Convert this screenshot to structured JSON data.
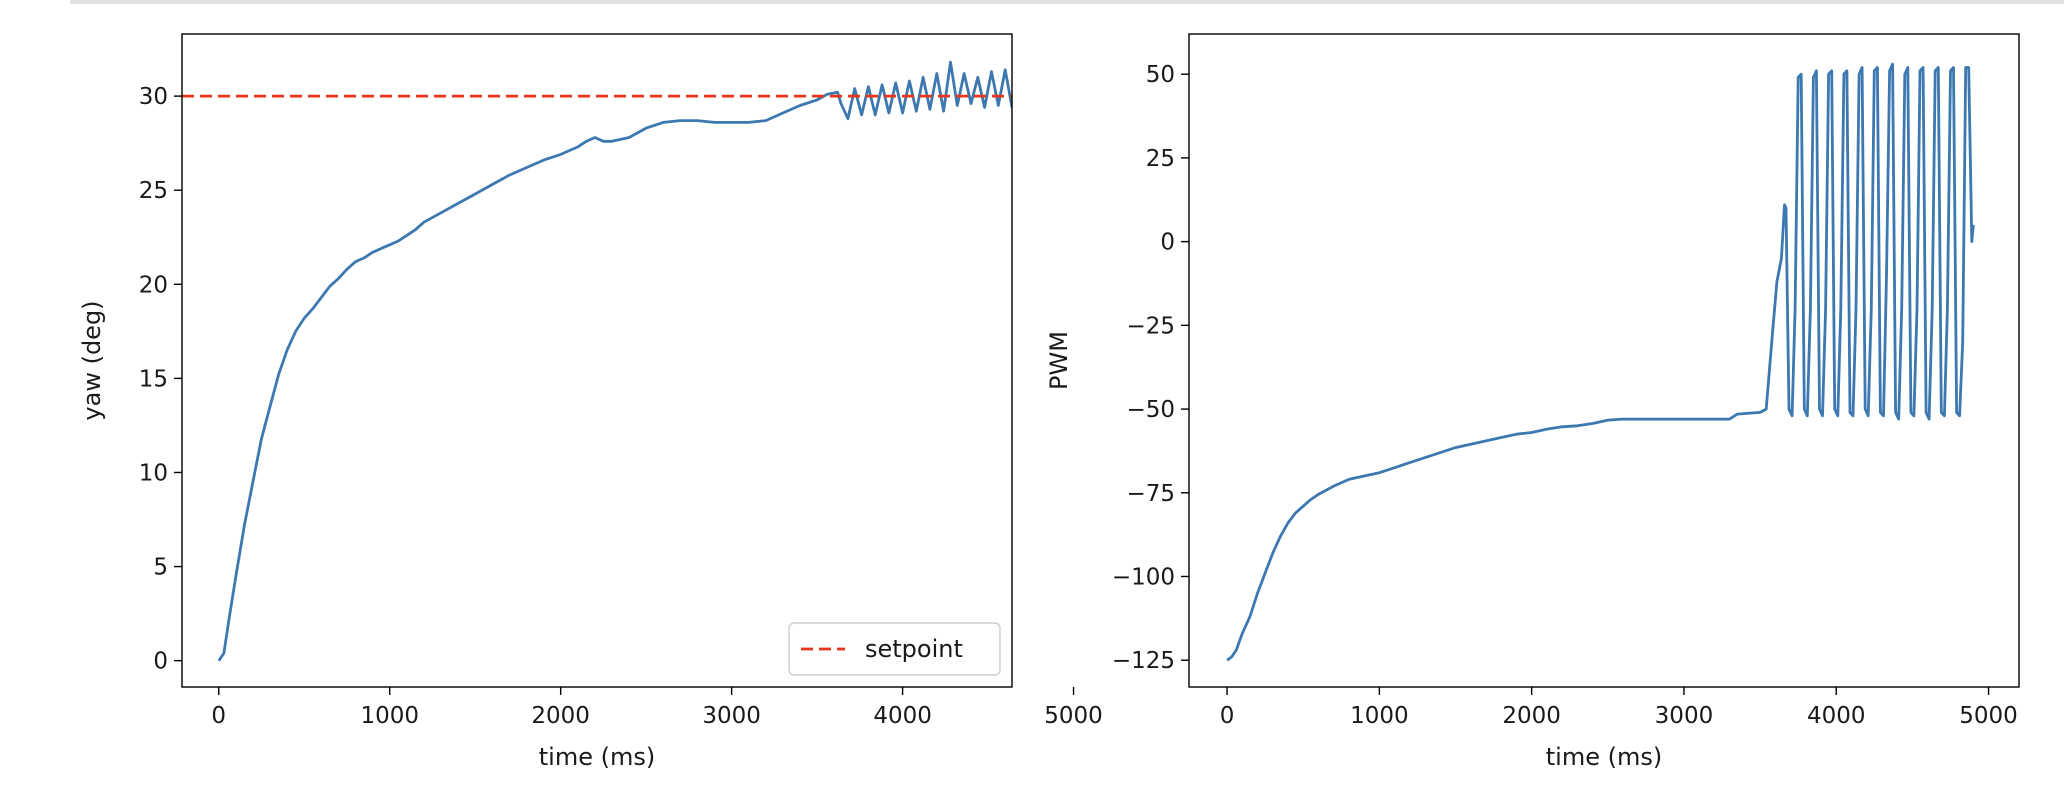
{
  "chart_data": [
    {
      "type": "line",
      "title": "",
      "xlabel": "time (ms)",
      "ylabel": "yaw (deg)",
      "xlim": [
        -215,
        4640
      ],
      "ylim": [
        -1.4,
        33.3
      ],
      "xticks": [
        0,
        1000,
        2000,
        3000,
        4000,
        5000
      ],
      "yticks": [
        0,
        5,
        10,
        15,
        20,
        25,
        30
      ],
      "grid": false,
      "legend": {
        "placement": "lower-right",
        "entries": [
          "setpoint"
        ]
      },
      "series": [
        {
          "color": "#3d78b1",
          "style": "solid",
          "points": [
            [
              0,
              0
            ],
            [
              30,
              0.4
            ],
            [
              60,
              2.2
            ],
            [
              100,
              4.5
            ],
            [
              150,
              7.2
            ],
            [
              200,
              9.5
            ],
            [
              250,
              11.8
            ],
            [
              300,
              13.5
            ],
            [
              350,
              15.2
            ],
            [
              400,
              16.5
            ],
            [
              450,
              17.5
            ],
            [
              500,
              18.2
            ],
            [
              550,
              18.7
            ],
            [
              600,
              19.3
            ],
            [
              650,
              19.9
            ],
            [
              700,
              20.3
            ],
            [
              750,
              20.8
            ],
            [
              800,
              21.2
            ],
            [
              850,
              21.4
            ],
            [
              900,
              21.7
            ],
            [
              950,
              21.9
            ],
            [
              1000,
              22.1
            ],
            [
              1050,
              22.3
            ],
            [
              1100,
              22.6
            ],
            [
              1150,
              22.9
            ],
            [
              1200,
              23.3
            ],
            [
              1300,
              23.8
            ],
            [
              1400,
              24.3
            ],
            [
              1500,
              24.8
            ],
            [
              1600,
              25.3
            ],
            [
              1700,
              25.8
            ],
            [
              1800,
              26.2
            ],
            [
              1900,
              26.6
            ],
            [
              2000,
              26.9
            ],
            [
              2100,
              27.3
            ],
            [
              2150,
              27.6
            ],
            [
              2200,
              27.8
            ],
            [
              2250,
              27.6
            ],
            [
              2300,
              27.6
            ],
            [
              2400,
              27.8
            ],
            [
              2500,
              28.3
            ],
            [
              2600,
              28.6
            ],
            [
              2700,
              28.7
            ],
            [
              2800,
              28.7
            ],
            [
              2900,
              28.6
            ],
            [
              3000,
              28.6
            ],
            [
              3100,
              28.6
            ],
            [
              3200,
              28.7
            ],
            [
              3300,
              29.1
            ],
            [
              3400,
              29.5
            ],
            [
              3500,
              29.8
            ],
            [
              3560,
              30.1
            ],
            [
              3620,
              30.2
            ],
            [
              3640,
              29.6
            ],
            [
              3680,
              28.8
            ],
            [
              3720,
              30.4
            ],
            [
              3760,
              29.0
            ],
            [
              3800,
              30.5
            ],
            [
              3840,
              29.0
            ],
            [
              3880,
              30.6
            ],
            [
              3920,
              29.1
            ],
            [
              3960,
              30.7
            ],
            [
              4000,
              29.1
            ],
            [
              4040,
              30.8
            ],
            [
              4080,
              29.2
            ],
            [
              4120,
              31.0
            ],
            [
              4160,
              29.3
            ],
            [
              4200,
              31.2
            ],
            [
              4240,
              29.2
            ],
            [
              4280,
              31.8
            ],
            [
              4320,
              29.5
            ],
            [
              4360,
              31.2
            ],
            [
              4400,
              29.6
            ],
            [
              4440,
              31.0
            ],
            [
              4480,
              29.4
            ],
            [
              4520,
              31.3
            ],
            [
              4560,
              29.5
            ],
            [
              4600,
              31.4
            ],
            [
              4640,
              29.4
            ],
            [
              4680,
              31.3
            ],
            [
              4720,
              29.5
            ],
            [
              4760,
              31.2
            ],
            [
              4800,
              29.4
            ],
            [
              4840,
              31.3
            ],
            [
              4880,
              29.6
            ],
            [
              4920,
              30.3
            ]
          ]
        },
        {
          "name": "setpoint",
          "color": "#e8351b",
          "style": "dashed",
          "points": [
            [
              -215,
              30
            ],
            [
              5225,
              30
            ]
          ]
        }
      ]
    },
    {
      "type": "line",
      "title": "",
      "xlabel": "time (ms)",
      "ylabel": "PWM",
      "xlim": [
        -250,
        5200
      ],
      "ylim": [
        -133,
        62
      ],
      "xticks": [
        0,
        1000,
        2000,
        3000,
        4000,
        5000
      ],
      "yticks": [
        -125,
        -100,
        -75,
        -50,
        -25,
        0,
        25,
        50
      ],
      "grid": false,
      "series": [
        {
          "color": "#3d78b1",
          "style": "solid",
          "points": [
            [
              0,
              -125
            ],
            [
              30,
              -124
            ],
            [
              60,
              -122
            ],
            [
              100,
              -117
            ],
            [
              150,
              -112
            ],
            [
              200,
              -105
            ],
            [
              250,
              -99
            ],
            [
              300,
              -93
            ],
            [
              350,
              -88
            ],
            [
              400,
              -84
            ],
            [
              450,
              -81
            ],
            [
              500,
              -79
            ],
            [
              550,
              -77
            ],
            [
              600,
              -75.5
            ],
            [
              700,
              -73
            ],
            [
              800,
              -71
            ],
            [
              900,
              -70
            ],
            [
              1000,
              -69
            ],
            [
              1100,
              -67.5
            ],
            [
              1200,
              -66
            ],
            [
              1300,
              -64.5
            ],
            [
              1400,
              -63
            ],
            [
              1500,
              -61.5
            ],
            [
              1600,
              -60.5
            ],
            [
              1700,
              -59.5
            ],
            [
              1800,
              -58.5
            ],
            [
              1900,
              -57.5
            ],
            [
              2000,
              -57
            ],
            [
              2100,
              -56
            ],
            [
              2200,
              -55.3
            ],
            [
              2300,
              -55
            ],
            [
              2400,
              -54.3
            ],
            [
              2500,
              -53.3
            ],
            [
              2600,
              -53
            ],
            [
              3000,
              -53
            ],
            [
              3300,
              -53
            ],
            [
              3350,
              -51.5
            ],
            [
              3500,
              -51
            ],
            [
              3540,
              -50
            ],
            [
              3580,
              -28
            ],
            [
              3610,
              -12
            ],
            [
              3640,
              -5
            ],
            [
              3660,
              11
            ],
            [
              3670,
              10
            ],
            [
              3690,
              -50
            ],
            [
              3710,
              -52
            ],
            [
              3730,
              -20
            ],
            [
              3750,
              49
            ],
            [
              3770,
              50
            ],
            [
              3790,
              -50
            ],
            [
              3810,
              -52
            ],
            [
              3830,
              -20
            ],
            [
              3850,
              49
            ],
            [
              3870,
              51
            ],
            [
              3890,
              -50
            ],
            [
              3910,
              -52
            ],
            [
              3930,
              -20
            ],
            [
              3950,
              50
            ],
            [
              3970,
              51
            ],
            [
              3990,
              -50
            ],
            [
              4010,
              -52
            ],
            [
              4030,
              -20
            ],
            [
              4050,
              50
            ],
            [
              4070,
              51
            ],
            [
              4090,
              -51
            ],
            [
              4110,
              -52
            ],
            [
              4130,
              -20
            ],
            [
              4150,
              50
            ],
            [
              4170,
              52
            ],
            [
              4190,
              -50
            ],
            [
              4210,
              -52
            ],
            [
              4230,
              -20
            ],
            [
              4250,
              51
            ],
            [
              4270,
              52
            ],
            [
              4290,
              -51
            ],
            [
              4310,
              -52
            ],
            [
              4330,
              -10
            ],
            [
              4350,
              51
            ],
            [
              4370,
              53
            ],
            [
              4390,
              -51
            ],
            [
              4410,
              -53
            ],
            [
              4430,
              -20
            ],
            [
              4450,
              50
            ],
            [
              4470,
              52
            ],
            [
              4490,
              -51
            ],
            [
              4510,
              -52
            ],
            [
              4530,
              -20
            ],
            [
              4550,
              51
            ],
            [
              4570,
              52
            ],
            [
              4590,
              -51
            ],
            [
              4610,
              -53
            ],
            [
              4630,
              -20
            ],
            [
              4650,
              51
            ],
            [
              4670,
              52
            ],
            [
              4690,
              -51
            ],
            [
              4710,
              -52
            ],
            [
              4730,
              -20
            ],
            [
              4750,
              51
            ],
            [
              4770,
              52
            ],
            [
              4790,
              -51
            ],
            [
              4810,
              -52
            ],
            [
              4830,
              -30
            ],
            [
              4850,
              52
            ],
            [
              4870,
              52
            ],
            [
              4890,
              0
            ],
            [
              4900,
              5
            ]
          ]
        }
      ]
    }
  ]
}
